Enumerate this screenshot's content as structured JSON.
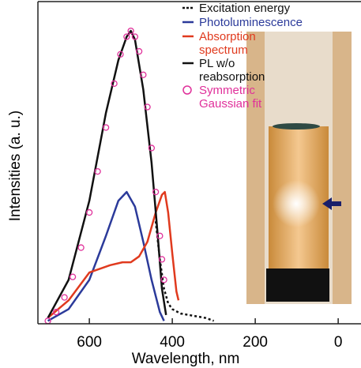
{
  "chart_data": {
    "type": "line",
    "x_label": "Wavelength, nm",
    "y_label": "Intensities (a. u.)",
    "xlim": [
      724,
      -55
    ],
    "xticks": [
      600,
      400,
      200,
      0
    ],
    "ylim": [
      0,
      1.1
    ],
    "series": [
      {
        "name": "Excitation energy",
        "color": "#111111",
        "style": "dotted",
        "x": [
          440,
          430,
          420,
          410,
          400,
          380,
          360,
          340,
          320,
          300
        ],
        "values": [
          0.35,
          0.22,
          0.12,
          0.07,
          0.05,
          0.035,
          0.03,
          0.025,
          0.02,
          0.01
        ]
      },
      {
        "name": "Photoluminescence",
        "color": "#2b3a9a",
        "style": "solid",
        "x": [
          700,
          650,
          600,
          560,
          530,
          510,
          490,
          470,
          450,
          430,
          420
        ],
        "values": [
          0.01,
          0.05,
          0.15,
          0.3,
          0.42,
          0.45,
          0.4,
          0.28,
          0.15,
          0.04,
          0.01
        ]
      },
      {
        "name": "Absorption spectrum",
        "color": "#e03a1e",
        "style": "solid",
        "x": [
          700,
          650,
          600,
          550,
          520,
          500,
          480,
          460,
          440,
          425,
          418,
          410,
          400,
          390,
          385
        ],
        "values": [
          0.02,
          0.08,
          0.175,
          0.2,
          0.21,
          0.21,
          0.23,
          0.28,
          0.38,
          0.44,
          0.45,
          0.38,
          0.24,
          0.11,
          0.08
        ]
      },
      {
        "name": "PL w/o reabsorption",
        "color": "#111111",
        "style": "solid",
        "x": [
          700,
          650,
          600,
          560,
          530,
          510,
          500,
          490,
          470,
          450,
          435,
          425,
          415
        ],
        "values": [
          0.02,
          0.15,
          0.42,
          0.72,
          0.9,
          0.98,
          1.0,
          0.97,
          0.8,
          0.55,
          0.3,
          0.12,
          0.03
        ]
      },
      {
        "name": "Symmetric Gaussian fit",
        "color": "#e0309a",
        "style": "circle",
        "x": [
          700,
          680,
          660,
          640,
          620,
          600,
          580,
          560,
          540,
          525,
          510,
          500,
          490,
          480,
          470,
          460,
          450,
          440,
          430,
          425,
          420
        ],
        "values": [
          0.01,
          0.04,
          0.09,
          0.16,
          0.26,
          0.38,
          0.52,
          0.67,
          0.82,
          0.92,
          0.98,
          1.0,
          0.98,
          0.93,
          0.85,
          0.74,
          0.6,
          0.45,
          0.3,
          0.22,
          0.15
        ]
      }
    ]
  }
}
